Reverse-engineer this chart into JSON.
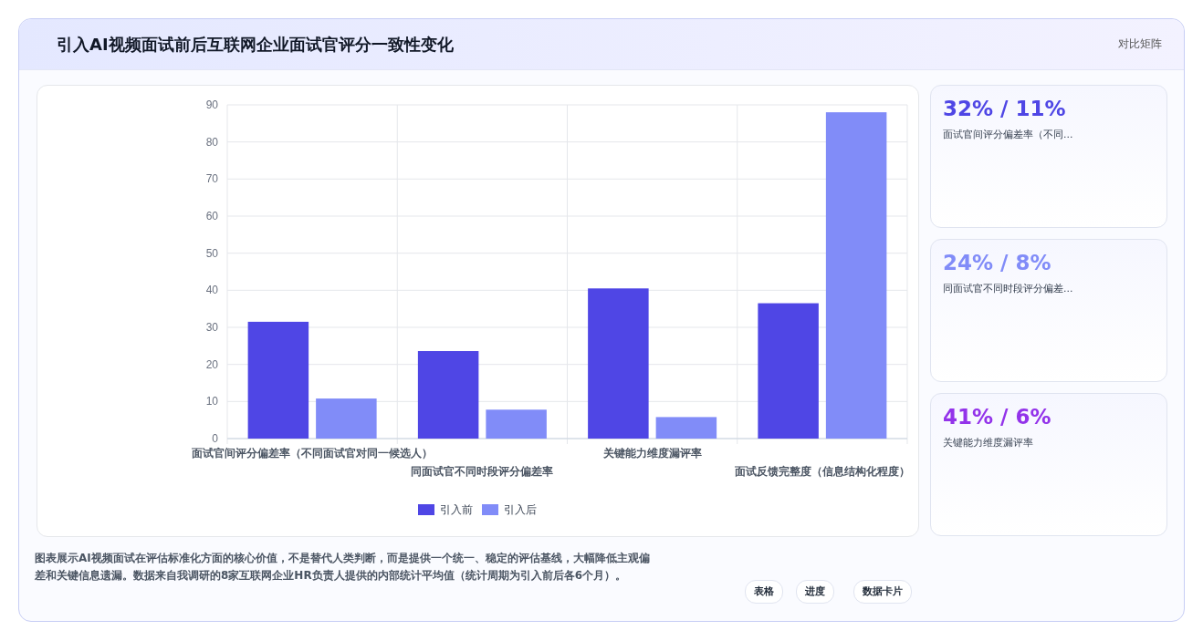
{
  "chart_data": [
    {
      "type": "bar",
      "title": "引入AI视频面试前后互联网企业面试官评分一致性变化",
      "categories": [
        "面试官间评分偏差率（不同面试官对同一候选人）",
        "同面试官不同时段评分偏差率",
        "关键能力维度漏评率",
        "面试反馈完整度（信息结构化程度）"
      ],
      "series": [
        {
          "name": "引入前",
          "color": "#4f46e5",
          "values": [
            31.5,
            23.6,
            40.5,
            36.5
          ]
        },
        {
          "name": "引入后",
          "color": "#818cf8",
          "values": [
            10.8,
            7.8,
            5.8,
            88
          ]
        }
      ],
      "ylim": [
        0,
        90
      ],
      "yticks": [
        0,
        10,
        20,
        30,
        40,
        50,
        60,
        70,
        80,
        90
      ],
      "grid": true,
      "legend": "bottom",
      "annotations": [
        "对比矩阵",
        "图表展示AI视频面试在评估标准化方面的核心价值，不是替代人类判断，而是提供一个统一、稳定的评估基线，大幅降低主观偏差和关键信息遗漏。数据来自我调研的8家互联网企业HR负责人提供的内部统计平均值（统计周期为引入前后各6个月）。",
        "表格",
        "进度",
        "数据卡片"
      ]
    },
    {
      "type": "other",
      "annotations": [
        "32% / 11%",
        "面试官间评分偏差率（不同...",
        "24% / 8%",
        "同面试官不同时段评分偏差...",
        "41% / 6%",
        "关键能力维度漏评率"
      ]
    }
  ]
}
